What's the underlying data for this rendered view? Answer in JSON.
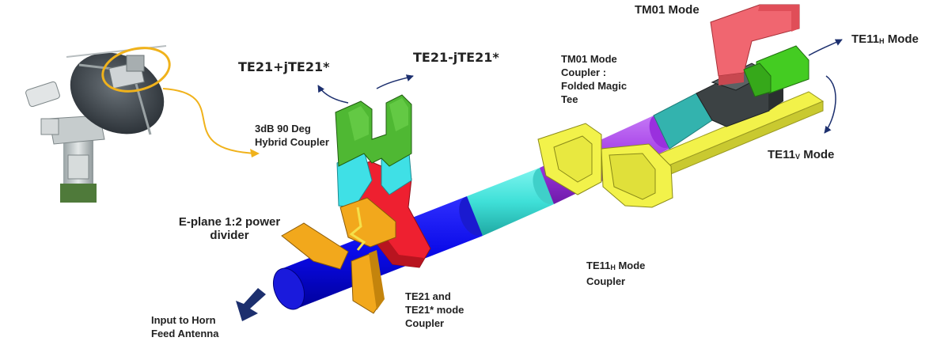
{
  "labels": {
    "te21_plus": "TE21+jTE21*",
    "te21_minus": "TE21-jTE21*",
    "hybrid_line1": "3dB 90 Deg",
    "hybrid_line2": "Hybrid Coupler",
    "eplane_line1": "E-plane 1:2 power",
    "eplane_line2": "divider",
    "input_line1": "Input to Horn",
    "input_line2": "Feed Antenna",
    "te21_coupler_line1": "TE21 and",
    "te21_coupler_line2": "TE21* mode",
    "te21_coupler_line3": "Coupler",
    "tm01_coupler_line1": "TM01 Mode",
    "tm01_coupler_line2": "Coupler :",
    "tm01_coupler_line3": "Folded Magic",
    "tm01_coupler_line4": "Tee",
    "tm01_mode": "TM01 Mode",
    "te11h_mode_main": "TE11",
    "te11h_mode_sub": "H",
    "te11h_mode_tail": " Mode",
    "te11v_mode_main": "TE11",
    "te11v_mode_sub": "V",
    "te11v_mode_tail": " Mode",
    "te11h_coupler_main": "TE11",
    "te11h_coupler_sub": "H",
    "te11h_coupler_tail": " Mode",
    "te11h_coupler_line2": "Coupler"
  },
  "colors": {
    "blue": "#0a0ae8",
    "cyan": "#3fe0d8",
    "purple": "#a238e6",
    "teal": "#33b3ae",
    "yellow": "#f2f24a",
    "orange": "#f2a81c",
    "red": "#ee2030",
    "green": "#4fb833",
    "salmon": "#f06670",
    "arrow_navy": "#1c2f6e",
    "callout": "#f0b21b"
  }
}
